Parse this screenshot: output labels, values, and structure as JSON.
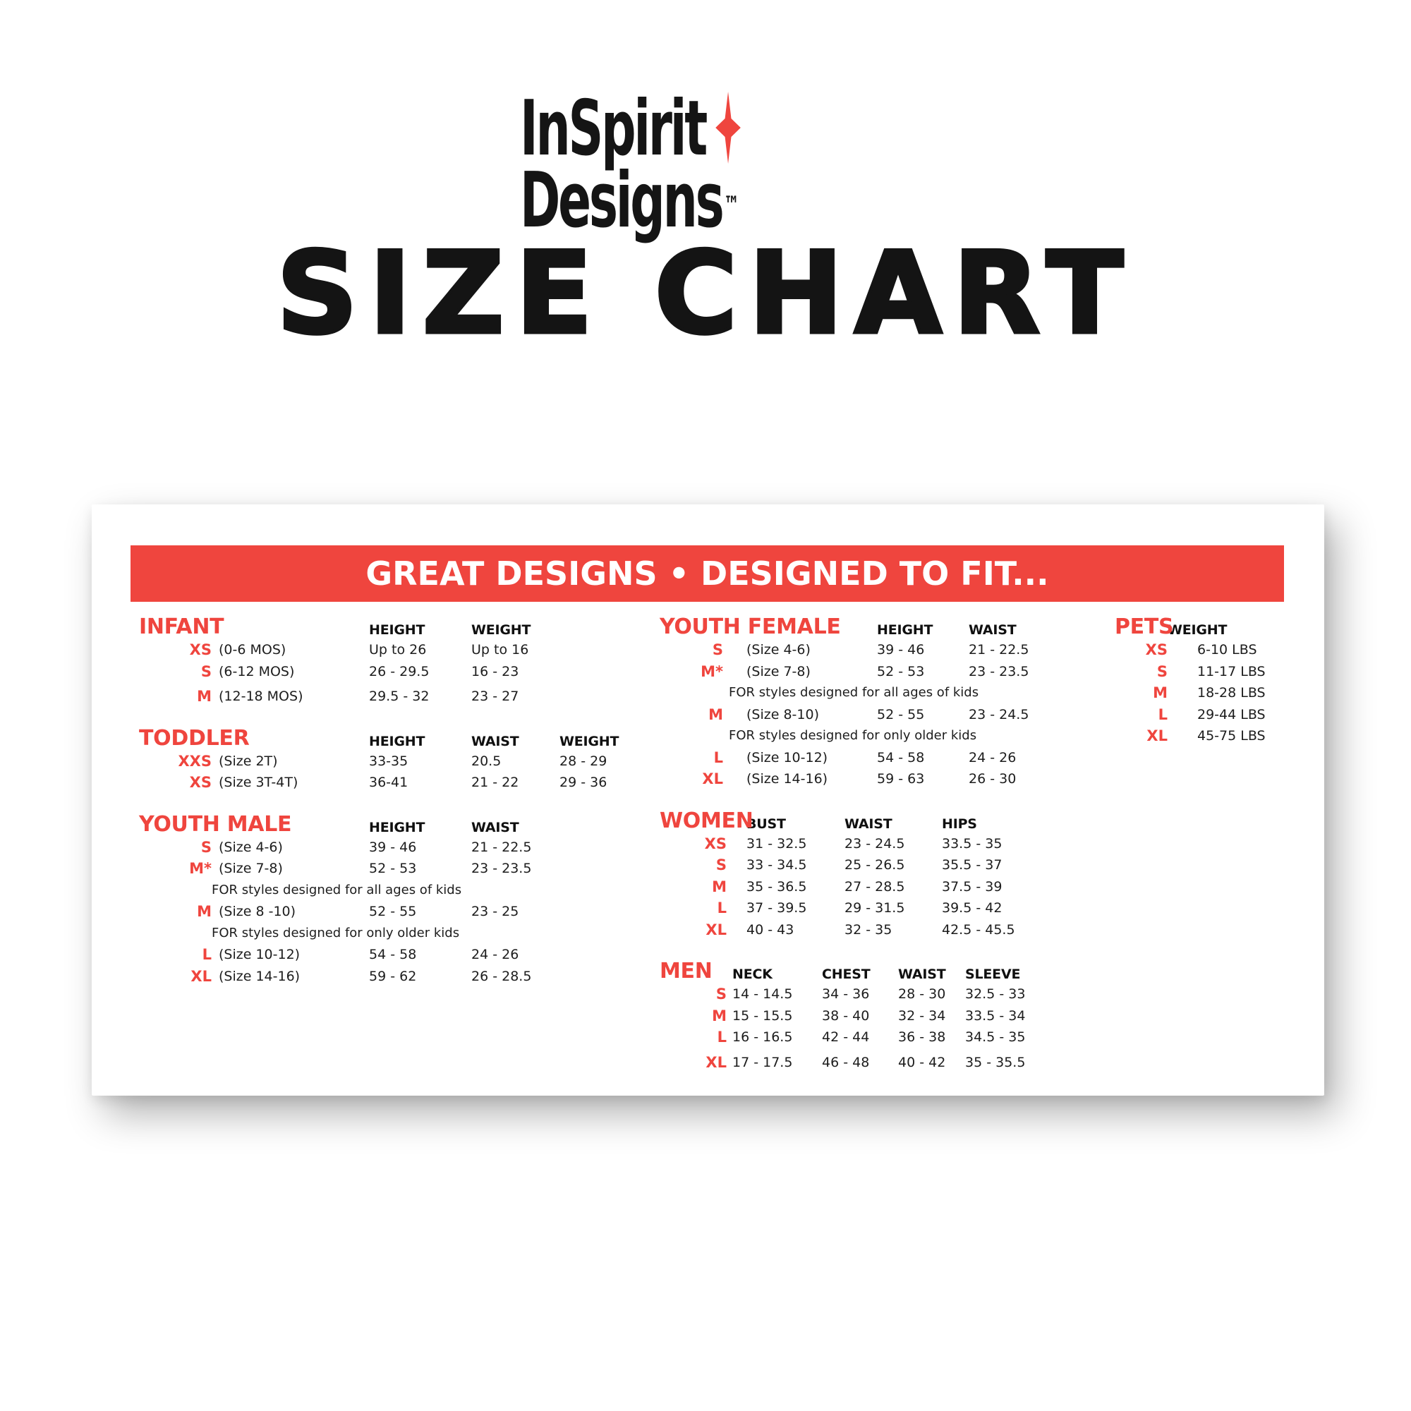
{
  "logo": {
    "line1": "InSpirit",
    "line2": "Designs",
    "trademark": "™",
    "star_color": "#EF453E"
  },
  "page_title": "SIZE CHART",
  "banner": {
    "text": "GREAT DESIGNS • DESIGNED TO FIT...",
    "background_color": "#EF453E",
    "text_color": "#FFFFFF"
  },
  "colors": {
    "accent_red": "#EF453E",
    "text_dark": "#1D1D1D",
    "card_background": "#FFFFFF"
  },
  "tables": {
    "infant": {
      "title": "INFANT",
      "headers": [
        "HEIGHT",
        "WEIGHT"
      ],
      "rows": [
        {
          "size": "XS",
          "desc": "(0-6 MOS)",
          "values": [
            "Up to 26",
            "Up to 16"
          ]
        },
        {
          "size": "S",
          "desc": "(6-12 MOS)",
          "values": [
            "26 - 29.5",
            "16 - 23"
          ]
        },
        {
          "size": "M",
          "desc": "(12-18 MOS)",
          "values": [
            "29.5 - 32",
            "23 - 27"
          ],
          "gap": true
        }
      ]
    },
    "toddler": {
      "title": "TODDLER",
      "headers": [
        "HEIGHT",
        "WAIST",
        "WEIGHT"
      ],
      "rows": [
        {
          "size": "XXS",
          "desc": "(Size 2T)",
          "values": [
            "33-35",
            "20.5",
            "28 - 29"
          ]
        },
        {
          "size": "XS",
          "desc": "(Size 3T-4T)",
          "values": [
            "36-41",
            "21 - 22",
            "29 - 36"
          ]
        }
      ]
    },
    "youth_male": {
      "title": "YOUTH MALE",
      "headers": [
        "HEIGHT",
        "WAIST"
      ],
      "rows": [
        {
          "size": "S",
          "desc": "(Size 4-6)",
          "values": [
            "39 - 46",
            "21 - 22.5"
          ]
        },
        {
          "size": "M*",
          "desc": "(Size 7-8)",
          "values": [
            "52 - 53",
            "23 - 23.5"
          ]
        },
        {
          "note": "FOR styles designed for all ages of kids"
        },
        {
          "size": "M",
          "desc": "(Size 8 -10)",
          "values": [
            "52 - 55",
            "23 - 25"
          ]
        },
        {
          "note": "FOR styles designed for only older kids"
        },
        {
          "size": "L",
          "desc": "(Size 10-12)",
          "values": [
            "54 - 58",
            "24 - 26"
          ]
        },
        {
          "size": "XL",
          "desc": "(Size 14-16)",
          "values": [
            "59 - 62",
            "26 - 28.5"
          ]
        }
      ]
    },
    "youth_female": {
      "title": "YOUTH FEMALE",
      "headers": [
        "HEIGHT",
        "WAIST"
      ],
      "rows": [
        {
          "size": "S",
          "desc": "(Size 4-6)",
          "values": [
            "39 - 46",
            "21 - 22.5"
          ]
        },
        {
          "size": "M*",
          "desc": "(Size 7-8)",
          "values": [
            "52 - 53",
            "23 - 23.5"
          ]
        },
        {
          "note": "FOR styles designed for all ages of kids"
        },
        {
          "size": "M",
          "desc": "(Size 8-10)",
          "values": [
            "52 - 55",
            "23 - 24.5"
          ]
        },
        {
          "note": "FOR styles designed for only older kids"
        },
        {
          "size": "L",
          "desc": "(Size 10-12)",
          "values": [
            "54 - 58",
            "24 - 26"
          ]
        },
        {
          "size": "XL",
          "desc": "(Size 14-16)",
          "values": [
            "59 - 63",
            "26 - 30"
          ]
        }
      ]
    },
    "women": {
      "title": "WOMEN",
      "headers": [
        "BUST",
        "WAIST",
        "HIPS"
      ],
      "rows": [
        {
          "size": "XS",
          "values": [
            "31 - 32.5",
            "23 - 24.5",
            "33.5 - 35"
          ]
        },
        {
          "size": "S",
          "values": [
            "33 - 34.5",
            "25 - 26.5",
            "35.5 - 37"
          ]
        },
        {
          "size": "M",
          "values": [
            "35 - 36.5",
            "27 - 28.5",
            "37.5 - 39"
          ]
        },
        {
          "size": "L",
          "values": [
            "37 - 39.5",
            "29 - 31.5",
            "39.5 - 42"
          ]
        },
        {
          "size": "XL",
          "values": [
            "40 - 43",
            "32 - 35",
            "42.5 - 45.5"
          ]
        }
      ]
    },
    "men": {
      "title": "MEN",
      "headers": [
        "NECK",
        "CHEST",
        "WAIST",
        "SLEEVE"
      ],
      "rows": [
        {
          "size": "S",
          "values": [
            "14 - 14.5",
            "34 - 36",
            "28 - 30",
            "32.5 - 33"
          ]
        },
        {
          "size": "M",
          "values": [
            "15 - 15.5",
            "38 - 40",
            "32 - 34",
            "33.5 - 34"
          ]
        },
        {
          "size": "L",
          "values": [
            "16 - 16.5",
            "42 - 44",
            "36 - 38",
            "34.5 - 35"
          ]
        },
        {
          "size": "XL",
          "values": [
            "17 - 17.5",
            "46 - 48",
            "40 - 42",
            "35 - 35.5"
          ],
          "gap": true
        }
      ]
    },
    "pets": {
      "title": "PETS",
      "headers": [
        "WEIGHT"
      ],
      "rows": [
        {
          "size": "XS",
          "values": [
            "6-10 LBS"
          ]
        },
        {
          "size": "S",
          "values": [
            "11-17 LBS"
          ]
        },
        {
          "size": "M",
          "values": [
            "18-28 LBS"
          ]
        },
        {
          "size": "L",
          "values": [
            "29-44 LBS"
          ]
        },
        {
          "size": "XL",
          "values": [
            "45-75 LBS"
          ]
        }
      ]
    }
  }
}
